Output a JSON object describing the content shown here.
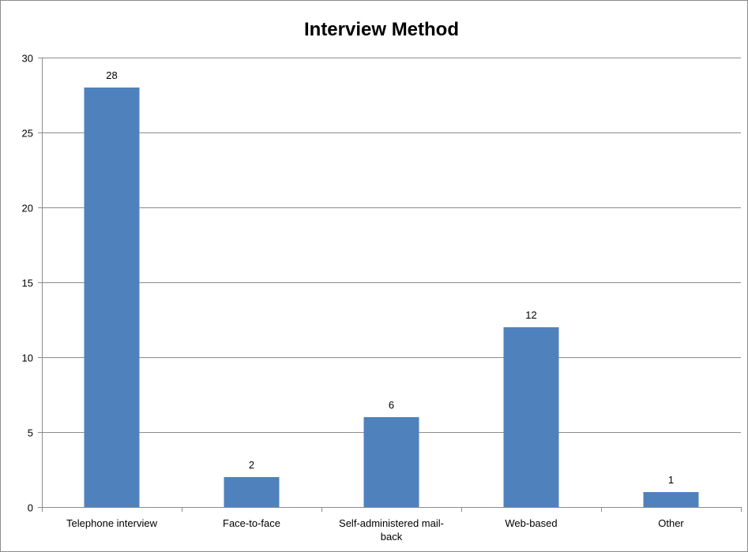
{
  "chart_data": {
    "type": "bar",
    "title": "Interview Method",
    "xlabel": "",
    "ylabel": "",
    "categories": [
      [
        "Telephone interview"
      ],
      [
        "Face-to-face"
      ],
      [
        "Self-administered mail-",
        "back"
      ],
      [
        "Web-based"
      ],
      [
        "Other"
      ]
    ],
    "values": [
      28,
      2,
      6,
      12,
      1
    ],
    "ylim": [
      0,
      30
    ],
    "yticks": [
      0,
      5,
      10,
      15,
      20,
      25,
      30
    ],
    "grid": true,
    "legend": "none",
    "data_labels": true,
    "colors": {
      "bar": "#4f81bd",
      "grid": "#8c8c8c",
      "text": "#000000"
    }
  }
}
